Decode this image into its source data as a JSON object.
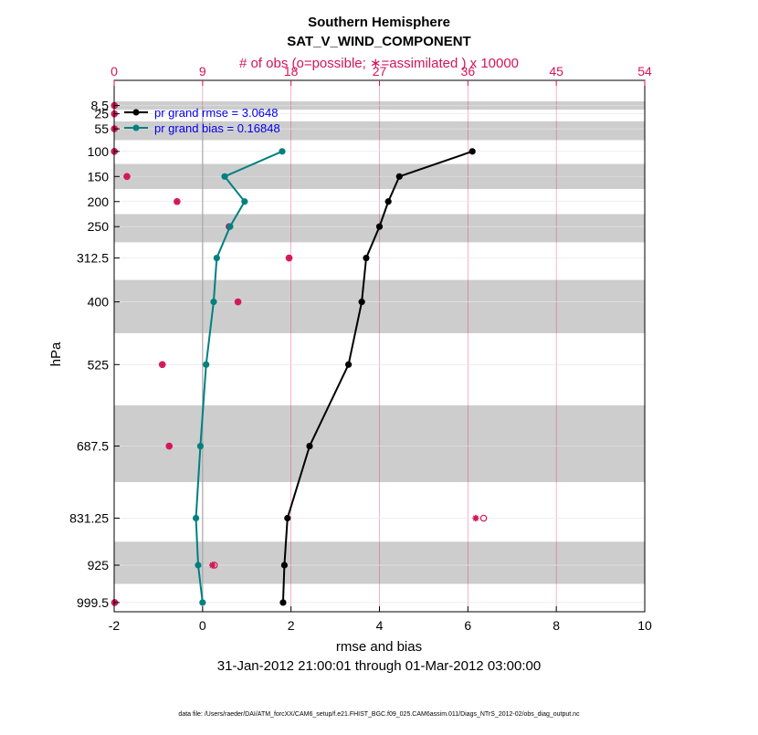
{
  "chart_data": {
    "type": "line",
    "title": "Southern Hemisphere",
    "subtitle": "SAT_V_WIND_COMPONENT",
    "top_axis_label": "# of obs (o=possible; ∗=assimilated ) x 10000",
    "top_ticks": [
      "0",
      "9",
      "18",
      "27",
      "36",
      "45",
      "54"
    ],
    "top_range": [
      0,
      54
    ],
    "xlabel": "rmse and bias",
    "xlim": [
      -2,
      10
    ],
    "x_ticks": [
      -2,
      0,
      2,
      4,
      6,
      8,
      10
    ],
    "x_tick_labels": [
      "-2",
      "0",
      "2",
      "4",
      "6",
      "8",
      "10"
    ],
    "ylabel": "hPa",
    "levels": [
      8.5,
      25,
      55,
      100,
      150,
      200,
      250,
      312.5,
      400,
      525,
      687.5,
      831.25,
      925,
      999.5
    ],
    "level_labels": [
      "8.5",
      "25",
      "55",
      "100",
      "150",
      "200",
      "250",
      "312.5",
      "400",
      "525",
      "687.5",
      "831.25",
      "925",
      "999.5"
    ],
    "series": [
      {
        "name": "pr grand rmse = 3.0648",
        "color": "#000000",
        "levels": [
          100,
          150,
          200,
          250,
          312.5,
          400,
          525,
          687.5,
          831.25,
          925,
          999.5
        ],
        "values": [
          6.1,
          4.45,
          4.2,
          4.0,
          3.7,
          3.6,
          3.3,
          2.42,
          1.92,
          1.85,
          1.82
        ]
      },
      {
        "name": "pr grand bias = 0.16848",
        "color": "#00807f",
        "levels": [
          100,
          150,
          200,
          250,
          312.5,
          400,
          525,
          687.5,
          831.25,
          925,
          999.5
        ],
        "values": [
          1.8,
          0.5,
          0.95,
          0.62,
          0.32,
          0.25,
          0.08,
          -0.05,
          -0.15,
          -0.1,
          0.0
        ]
      }
    ],
    "obs_possible": {
      "color": "#d4145a",
      "levels": [
        8.5,
        25,
        55,
        100,
        150,
        200,
        250,
        312.5,
        400,
        525,
        687.5,
        831.25,
        925,
        999.5
      ],
      "values": [
        0.02,
        0.02,
        0.02,
        0.02,
        1.3,
        6.4,
        11.7,
        17.8,
        12.6,
        4.9,
        5.6,
        37.6,
        10.2,
        0.05
      ]
    },
    "obs_assimilated": {
      "color": "#d4145a",
      "levels": [
        8.5,
        25,
        55,
        100,
        150,
        200,
        250,
        312.5,
        400,
        525,
        687.5,
        831.25,
        925,
        999.5
      ],
      "values": [
        0.02,
        0.02,
        0.02,
        0.02,
        1.3,
        6.4,
        11.7,
        17.8,
        12.6,
        4.9,
        5.6,
        36.8,
        10.0,
        0.05
      ]
    },
    "legend_position": "top-left",
    "legend_text_color": "#0000ee",
    "date_range": "31-Jan-2012 21:00:01 through 01-Mar-2012 03:00:00",
    "footer": "data file: /Users/raeder/DAI/ATM_forcXX/CAM6_setup/f.e21.FHIST_BGC.f09_025.CAM6assim.011/Diags_NTrS_2012-02/obs_diag_output.nc"
  }
}
